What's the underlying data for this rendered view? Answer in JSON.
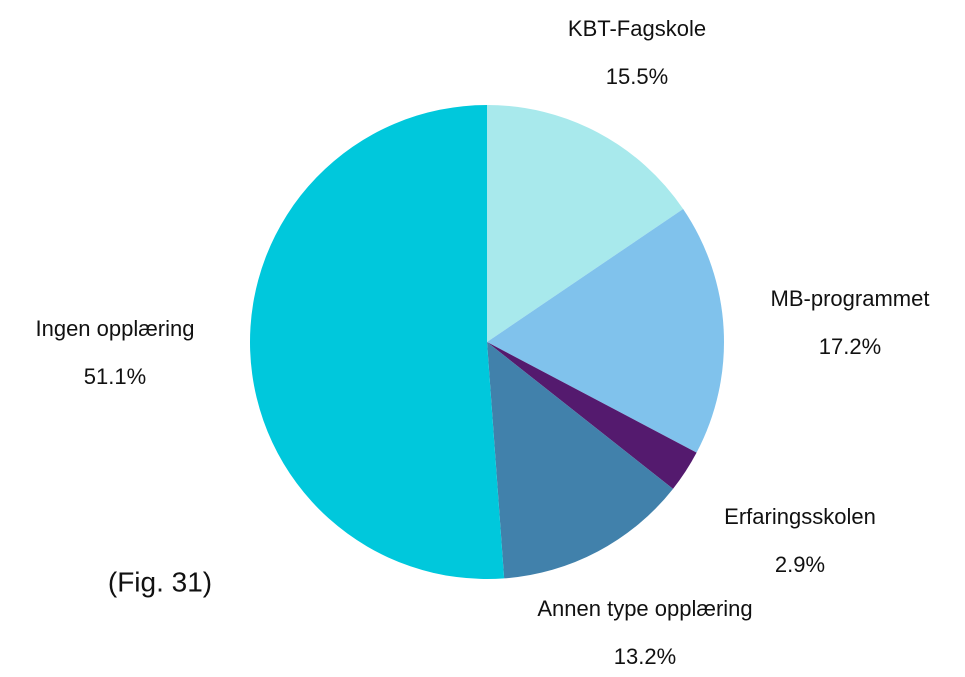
{
  "chart_data": {
    "type": "pie",
    "categories": [
      "KBT-Fagskole",
      "MB-programmet",
      "Erfaringsskolen",
      "Annen type opplæring",
      "Ingen opplæring"
    ],
    "values": [
      15.5,
      17.2,
      2.9,
      13.2,
      51.1
    ],
    "value_labels": [
      "15.5%",
      "17.2%",
      "2.9%",
      "13.2%",
      "51.1%"
    ],
    "colors": [
      "#a8e9ec",
      "#80c2ec",
      "#541a6e",
      "#4181ab",
      "#00c8dc"
    ],
    "annotation": "(Fig. 31)"
  }
}
